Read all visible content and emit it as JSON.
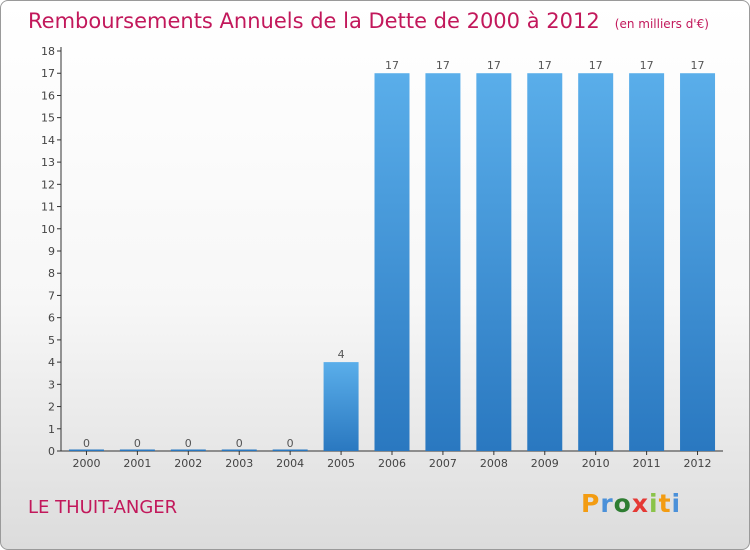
{
  "chart_data": {
    "type": "bar",
    "title": "Remboursements Annuels de la Dette de 2000 à 2012",
    "subtitle": "(en milliers d'€)",
    "categories": [
      "2000",
      "2001",
      "2002",
      "2003",
      "2004",
      "2005",
      "2006",
      "2007",
      "2008",
      "2009",
      "2010",
      "2011",
      "2012"
    ],
    "values": [
      0,
      0,
      0,
      0,
      0,
      4,
      17,
      17,
      17,
      17,
      17,
      17,
      17
    ],
    "data_labels": [
      "0",
      "0",
      "0",
      "0",
      "0",
      "4",
      "17",
      "17",
      "17",
      "17",
      "17",
      "17",
      "17"
    ],
    "ylim": [
      0,
      18
    ],
    "yticks": [
      "0",
      "1",
      "2",
      "3",
      "4",
      "5",
      "6",
      "7",
      "8",
      "9",
      "10",
      "11",
      "12",
      "13",
      "14",
      "15",
      "16",
      "17",
      "18"
    ],
    "grid": false,
    "bar_color": "#4a9fe0"
  },
  "footer": {
    "city": "LE THUIT-ANGER",
    "brand_letters": [
      {
        "ch": "P",
        "color": "#f39c12"
      },
      {
        "ch": "r",
        "color": "#4a90d9"
      },
      {
        "ch": "o",
        "color": "#2e7d32"
      },
      {
        "ch": "x",
        "color": "#e53935"
      },
      {
        "ch": "i",
        "color": "#8bc34a"
      },
      {
        "ch": "t",
        "color": "#f39c12"
      },
      {
        "ch": "i",
        "color": "#4a90d9"
      }
    ]
  }
}
